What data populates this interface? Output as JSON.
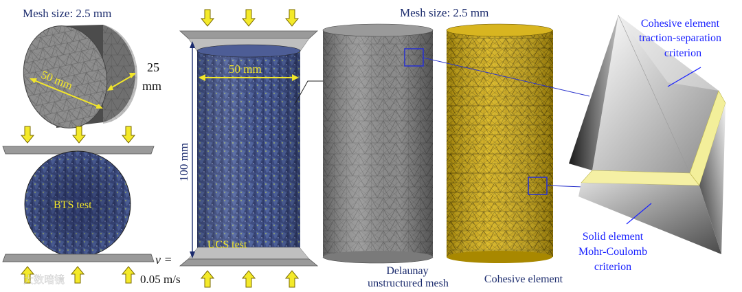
{
  "colors": {
    "label_dark": "#1a2a6c",
    "label_blue": "#1a22ff",
    "label_yellow": "#f2e62a",
    "arrow_fill": "#f4ea2a",
    "arrow_stroke": "#7a6a00",
    "platen": "#9a9a9a",
    "mesh_grey": "#8a8a8a",
    "cohesive_gold": "#c9a400",
    "ucs_blue": "#3e4f86",
    "zoom_line": "#2a33cc"
  },
  "icons": [
    "load-arrow-icon",
    "zoom-box-icon",
    "watermark-logo"
  ],
  "labels": {
    "mesh_size_left": "Mesh size: 2.5 mm",
    "mesh_size_center": "Mesh size: 2.5 mm",
    "disc_thickness_value": "25",
    "disc_thickness_unit": "mm",
    "disc_diameter": "50 mm",
    "bts_test": "BTS test",
    "ucs_diameter": "50 mm",
    "ucs_height": "100 mm",
    "ucs_test": "UCS test",
    "velocity_symbol": "v =",
    "velocity_value": "0.05 m/s",
    "delaunay_line1": "Delaunay",
    "delaunay_line2": "unstructured mesh",
    "cohesive_element": "Cohesive element",
    "cohesive_crit_line1": "Cohesive element",
    "cohesive_crit_line2": "traction-separation",
    "cohesive_crit_line3": "criterion",
    "solid_crit_line1": "Solid element",
    "solid_crit_line2": "Mohr-Coulomb",
    "solid_crit_line3": "criterion",
    "watermark": "大数暗镜"
  }
}
